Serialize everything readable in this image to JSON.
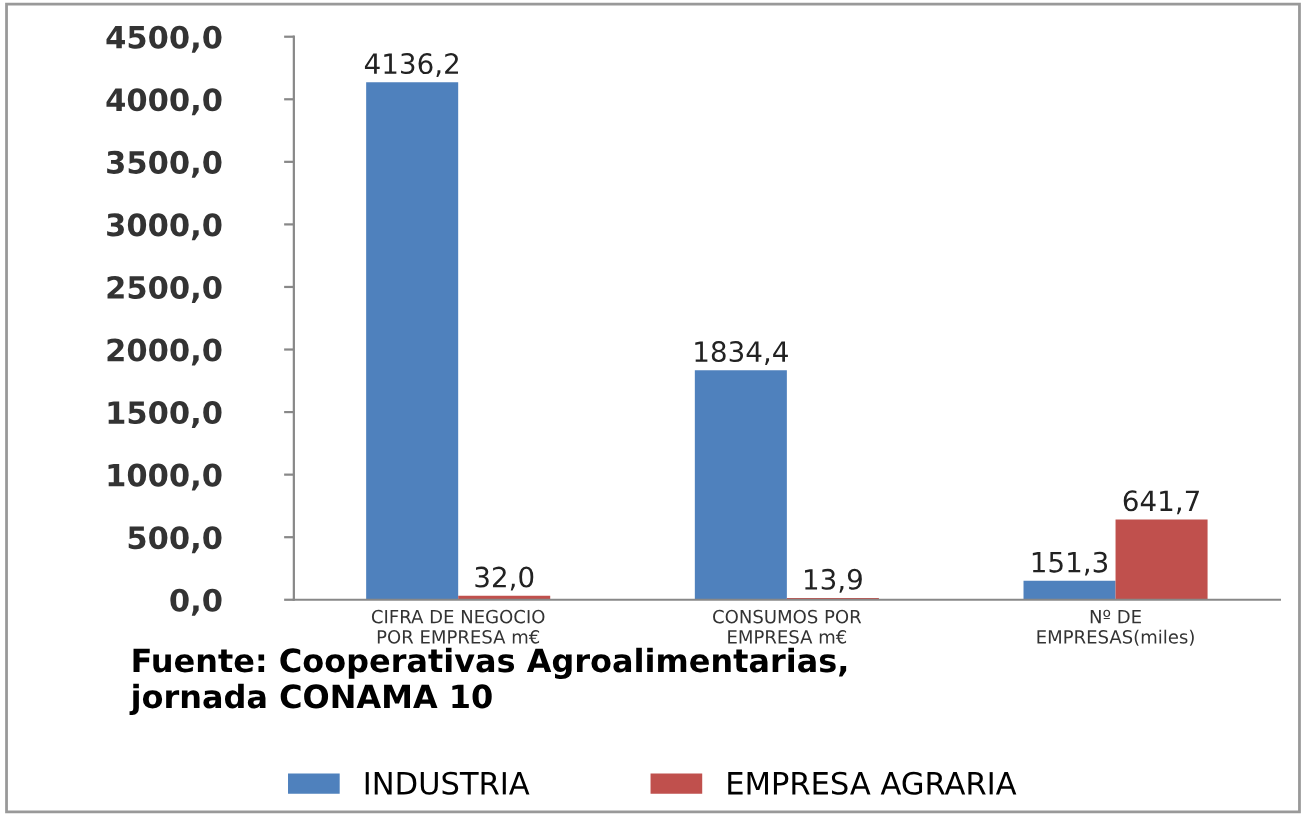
{
  "chart_data": {
    "type": "bar",
    "categories": [
      "CIFRA DE NEGOCIO\nPOR EMPRESA m€",
      "CONSUMOS POR\nEMPRESA m€",
      "Nº DE\nEMPRESAS(miles)"
    ],
    "series": [
      {
        "name": "INDUSTRIA",
        "color": "#4f81bd",
        "values": [
          4136.2,
          1834.4,
          151.3
        ],
        "value_labels": [
          "4136,2",
          "1834,4",
          "151,3"
        ]
      },
      {
        "name": "EMPRESA AGRARIA",
        "color": "#c0504d",
        "values": [
          32.0,
          13.9,
          641.7
        ],
        "value_labels": [
          "32,0",
          "13,9",
          "641,7"
        ]
      }
    ],
    "ylim": [
      0,
      4500
    ],
    "yticks": [
      {
        "value": 0,
        "label": "0,0"
      },
      {
        "value": 500,
        "label": "500,0"
      },
      {
        "value": 1000,
        "label": "1000,0"
      },
      {
        "value": 1500,
        "label": "1500,0"
      },
      {
        "value": 2000,
        "label": "2000,0"
      },
      {
        "value": 2500,
        "label": "2500,0"
      },
      {
        "value": 3000,
        "label": "3000,0"
      },
      {
        "value": 3500,
        "label": "3500,0"
      },
      {
        "value": 4000,
        "label": "4000,0"
      },
      {
        "value": 4500,
        "label": "4500,0"
      }
    ],
    "grid": false,
    "legend": "bottom",
    "annotations": [
      "Fuente: Cooperativas Agroalimentarias,\njornada CONAMA 10"
    ]
  }
}
